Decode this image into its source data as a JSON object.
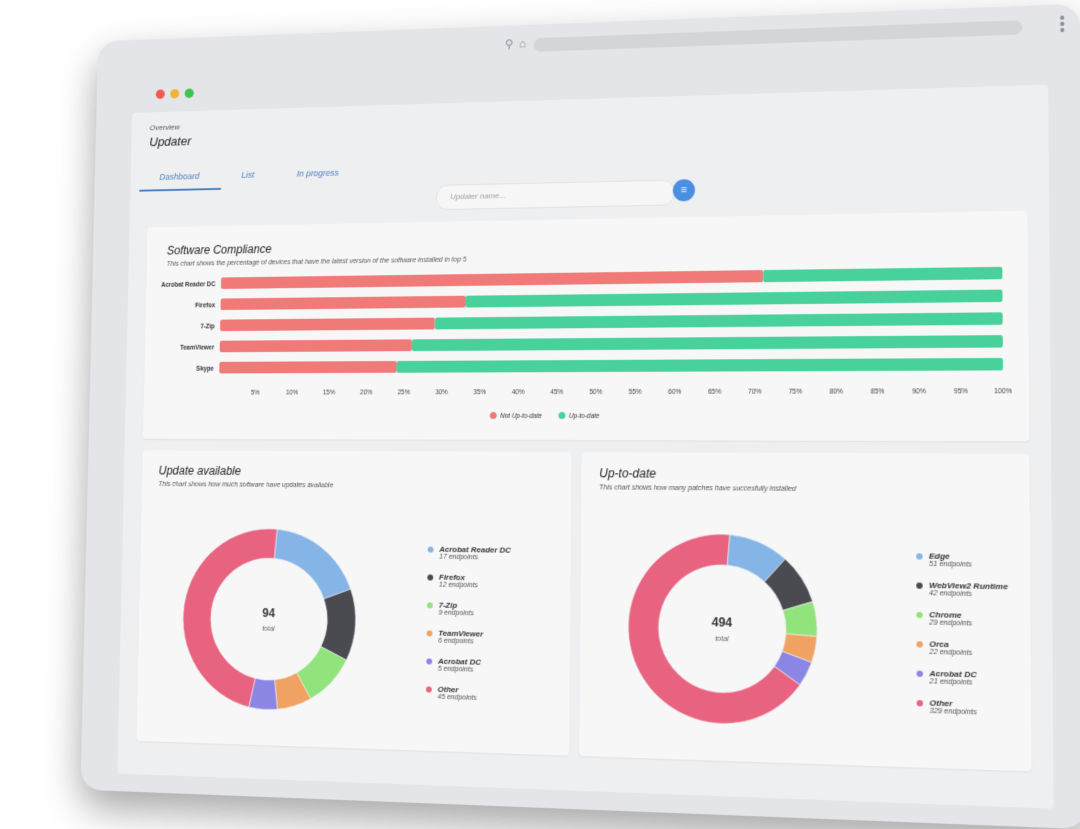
{
  "breadcrumb": "Overview",
  "page_title": "Updater",
  "tabs": [
    {
      "label": "Dashboard"
    },
    {
      "label": "List"
    },
    {
      "label": "In progress"
    }
  ],
  "search": {
    "placeholder": "Updater name..."
  },
  "colors": {
    "not_up_to_date": "#f07a78",
    "up_to_date": "#48d19a",
    "accent": "#4a8fe0"
  },
  "icons": [
    "search-icon",
    "home-icon",
    "filter-icon",
    "kebab-menu-icon"
  ],
  "chart_data": [
    {
      "type": "bar",
      "orientation": "horizontal",
      "stacked": true,
      "title": "Software Compliance",
      "subtitle": "This chart shows the percentage of devices that have the latest version of the software installed in top 5",
      "categories": [
        "Acrobat Reader DC",
        "Firefox",
        "7-Zip",
        "TeamViewer",
        "Skype"
      ],
      "series": [
        {
          "name": "Not Up-to-date",
          "color": "#f07a78",
          "values": [
            71,
            33,
            29,
            26,
            24
          ]
        },
        {
          "name": "Up-to-date",
          "color": "#48d19a",
          "values": [
            29,
            67,
            71,
            74,
            76
          ]
        }
      ],
      "xlim": [
        0,
        100
      ],
      "x_ticks": [
        "5%",
        "10%",
        "15%",
        "20%",
        "25%",
        "30%",
        "35%",
        "40%",
        "45%",
        "50%",
        "55%",
        "60%",
        "65%",
        "70%",
        "75%",
        "80%",
        "85%",
        "90%",
        "95%",
        "100%"
      ],
      "legend": "bottom"
    },
    {
      "type": "pie",
      "donut": true,
      "title": "Update available",
      "subtitle": "This chart shows how much software have updates available",
      "center_value": "94",
      "center_label": "total",
      "legend": "right",
      "slices": [
        {
          "label": "Acrobat Reader DC",
          "value": 17,
          "value_text": "17 endpoints",
          "color": "#85b4e6"
        },
        {
          "label": "Firefox",
          "value": 12,
          "value_text": "12 endpoints",
          "color": "#4a4b50"
        },
        {
          "label": "7-Zip",
          "value": 9,
          "value_text": "9 endpoints",
          "color": "#92e37c"
        },
        {
          "label": "TeamViewer",
          "value": 6,
          "value_text": "6 endpoints",
          "color": "#f0a262"
        },
        {
          "label": "Acrobat DC",
          "value": 5,
          "value_text": "5 endpoints",
          "color": "#8b86e4"
        },
        {
          "label": "Other",
          "value": 45,
          "value_text": "45 endpoints",
          "color": "#e8637f"
        }
      ]
    },
    {
      "type": "pie",
      "donut": true,
      "title": "Up-to-date",
      "subtitle": "This chart shows how many patches have succesfully installed",
      "center_value": "494",
      "center_label": "total",
      "legend": "right",
      "slices": [
        {
          "label": "Edge",
          "value": 51,
          "value_text": "51 endpoints",
          "color": "#85b4e6"
        },
        {
          "label": "WebView2 Runtime",
          "value": 42,
          "value_text": "42 endpoints",
          "color": "#4a4b50"
        },
        {
          "label": "Chrome",
          "value": 29,
          "value_text": "29 endpoints",
          "color": "#92e37c"
        },
        {
          "label": "Orca",
          "value": 22,
          "value_text": "22 endpoints",
          "color": "#f0a262"
        },
        {
          "label": "Acrobat DC",
          "value": 21,
          "value_text": "21 endpoints",
          "color": "#8b86e4"
        },
        {
          "label": "Other",
          "value": 329,
          "value_text": "329 endpoints",
          "color": "#e8637f"
        }
      ]
    }
  ]
}
